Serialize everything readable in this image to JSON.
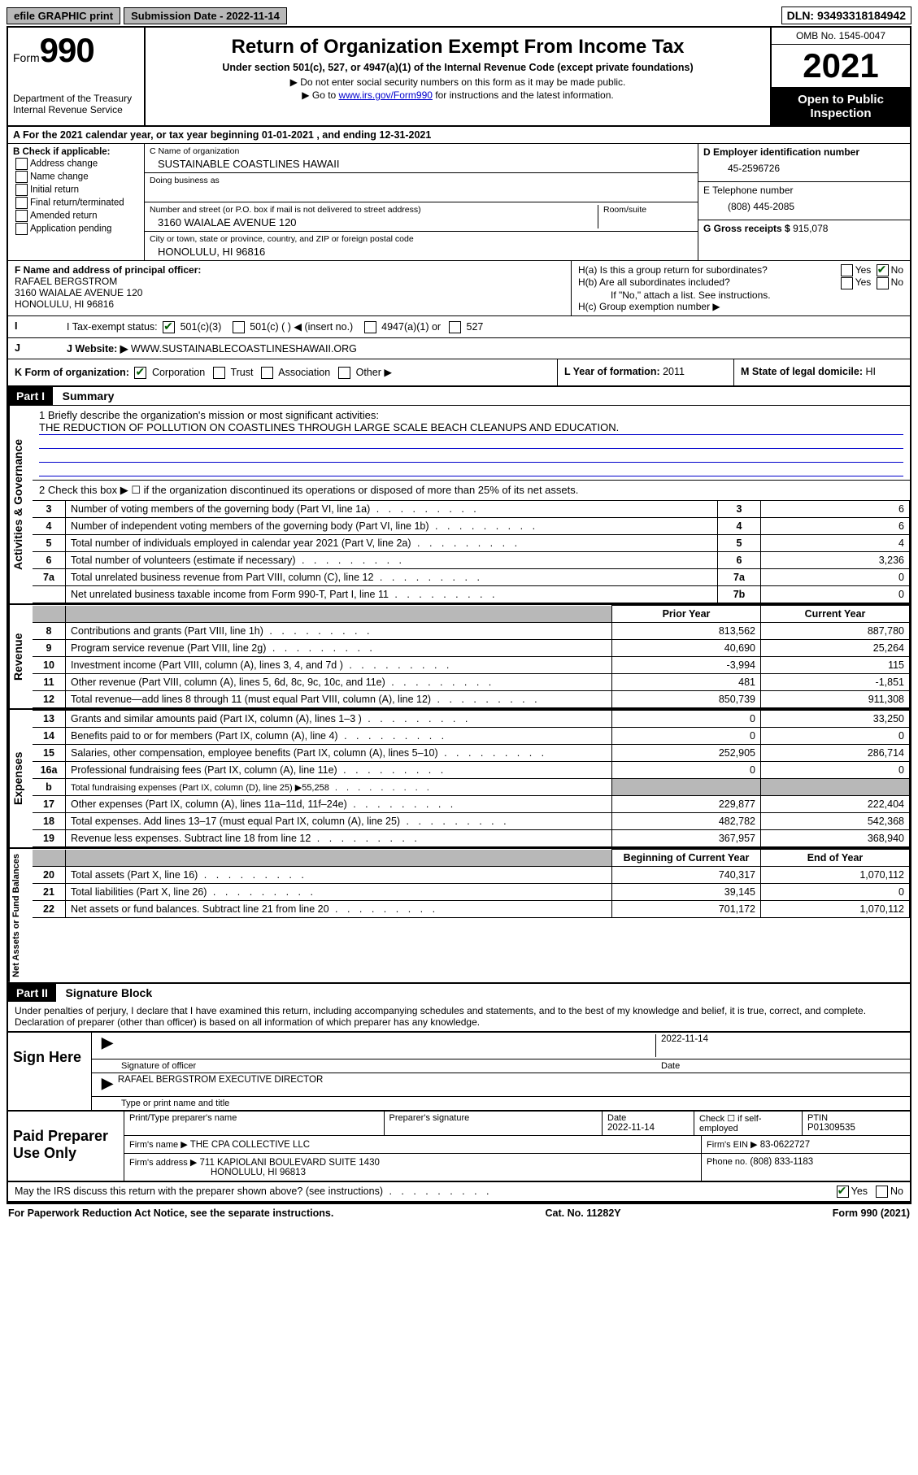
{
  "topbar": {
    "efile": "efile GRAPHIC print",
    "submission_label": "Submission Date - 2022-11-14",
    "dln": "DLN: 93493318184942"
  },
  "header": {
    "form_prefix": "Form",
    "form_number": "990",
    "dept": "Department of the Treasury",
    "irs": "Internal Revenue Service",
    "title": "Return of Organization Exempt From Income Tax",
    "sub": "Under section 501(c), 527, or 4947(a)(1) of the Internal Revenue Code (except private foundations)",
    "note1": "▶ Do not enter social security numbers on this form as it may be made public.",
    "note2_pre": "▶ Go to ",
    "note2_link": "www.irs.gov/Form990",
    "note2_post": " for instructions and the latest information.",
    "omb": "OMB No. 1545-0047",
    "year": "2021",
    "open_public1": "Open to Public",
    "open_public2": "Inspection"
  },
  "rowA": "A For the 2021 calendar year, or tax year beginning 01-01-2021  , and ending 12-31-2021",
  "colB": {
    "title": "B Check if applicable:",
    "items": [
      "Address change",
      "Name change",
      "Initial return",
      "Final return/terminated",
      "Amended return",
      "Application pending"
    ]
  },
  "colC": {
    "name_lbl": "C Name of organization",
    "name": "SUSTAINABLE COASTLINES HAWAII",
    "dba_lbl": "Doing business as",
    "addr_lbl": "Number and street (or P.O. box if mail is not delivered to street address)",
    "room_lbl": "Room/suite",
    "addr": "3160 WAIALAE AVENUE 120",
    "city_lbl": "City or town, state or province, country, and ZIP or foreign postal code",
    "city": "HONOLULU, HI  96816"
  },
  "colD": {
    "ein_lbl": "D Employer identification number",
    "ein": "45-2596726",
    "phone_lbl": "E Telephone number",
    "phone": "(808) 445-2085",
    "gross_lbl": "G Gross receipts $",
    "gross": "915,078"
  },
  "rowF": {
    "lbl": "F Name and address of principal officer:",
    "name": "RAFAEL BERGSTROM",
    "addr1": "3160 WAIALAE AVENUE 120",
    "addr2": "HONOLULU, HI  96816"
  },
  "rowH": {
    "ha": "H(a)  Is this a group return for subordinates?",
    "hb": "H(b)  Are all subordinates included?",
    "hb_note": "If \"No,\" attach a list. See instructions.",
    "hc": "H(c)  Group exemption number ▶",
    "yes": "Yes",
    "no": "No"
  },
  "rowI": {
    "lbl": "I  Tax-exempt status:",
    "o1": "501(c)(3)",
    "o2": "501(c) (  ) ◀ (insert no.)",
    "o3": "4947(a)(1) or",
    "o4": "527"
  },
  "rowJ": {
    "lbl": "J  Website: ▶",
    "val": "WWW.SUSTAINABLECOASTLINESHAWAII.ORG"
  },
  "rowK": {
    "lbl": "K Form of organization:",
    "o1": "Corporation",
    "o2": "Trust",
    "o3": "Association",
    "o4": "Other ▶",
    "L_lbl": "L Year of formation:",
    "L_val": "2011",
    "M_lbl": "M State of legal domicile:",
    "M_val": "HI"
  },
  "part1": {
    "header": "Part I",
    "title": "Summary",
    "side_gov": "Activities & Governance",
    "side_rev": "Revenue",
    "side_exp": "Expenses",
    "side_net": "Net Assets or Fund Balances",
    "line1_lbl": "1  Briefly describe the organization's mission or most significant activities:",
    "line1_val": "THE REDUCTION OF POLLUTION ON COASTLINES THROUGH LARGE SCALE BEACH CLEANUPS AND EDUCATION.",
    "line2": "2  Check this box ▶ ☐  if the organization discontinued its operations or disposed of more than 25% of its net assets.",
    "prior_year": "Prior Year",
    "current_year": "Current Year",
    "begin_year": "Beginning of Current Year",
    "end_year": "End of Year",
    "rows_gov": [
      {
        "n": "3",
        "t": "Number of voting members of the governing body (Part VI, line 1a)",
        "b": "3",
        "v": "6"
      },
      {
        "n": "4",
        "t": "Number of independent voting members of the governing body (Part VI, line 1b)",
        "b": "4",
        "v": "6"
      },
      {
        "n": "5",
        "t": "Total number of individuals employed in calendar year 2021 (Part V, line 2a)",
        "b": "5",
        "v": "4"
      },
      {
        "n": "6",
        "t": "Total number of volunteers (estimate if necessary)",
        "b": "6",
        "v": "3,236"
      },
      {
        "n": "7a",
        "t": "Total unrelated business revenue from Part VIII, column (C), line 12",
        "b": "7a",
        "v": "0"
      },
      {
        "n": "",
        "t": "Net unrelated business taxable income from Form 990-T, Part I, line 11",
        "b": "7b",
        "v": "0"
      }
    ],
    "rows_rev": [
      {
        "n": "8",
        "t": "Contributions and grants (Part VIII, line 1h)",
        "p": "813,562",
        "c": "887,780"
      },
      {
        "n": "9",
        "t": "Program service revenue (Part VIII, line 2g)",
        "p": "40,690",
        "c": "25,264"
      },
      {
        "n": "10",
        "t": "Investment income (Part VIII, column (A), lines 3, 4, and 7d )",
        "p": "-3,994",
        "c": "115"
      },
      {
        "n": "11",
        "t": "Other revenue (Part VIII, column (A), lines 5, 6d, 8c, 9c, 10c, and 11e)",
        "p": "481",
        "c": "-1,851"
      },
      {
        "n": "12",
        "t": "Total revenue—add lines 8 through 11 (must equal Part VIII, column (A), line 12)",
        "p": "850,739",
        "c": "911,308"
      }
    ],
    "rows_exp": [
      {
        "n": "13",
        "t": "Grants and similar amounts paid (Part IX, column (A), lines 1–3 )",
        "p": "0",
        "c": "33,250"
      },
      {
        "n": "14",
        "t": "Benefits paid to or for members (Part IX, column (A), line 4)",
        "p": "0",
        "c": "0"
      },
      {
        "n": "15",
        "t": "Salaries, other compensation, employee benefits (Part IX, column (A), lines 5–10)",
        "p": "252,905",
        "c": "286,714"
      },
      {
        "n": "16a",
        "t": "Professional fundraising fees (Part IX, column (A), line 11e)",
        "p": "0",
        "c": "0"
      },
      {
        "n": "b",
        "t": "Total fundraising expenses (Part IX, column (D), line 25) ▶55,258",
        "p": "",
        "c": "",
        "shade": true
      },
      {
        "n": "17",
        "t": "Other expenses (Part IX, column (A), lines 11a–11d, 11f–24e)",
        "p": "229,877",
        "c": "222,404"
      },
      {
        "n": "18",
        "t": "Total expenses. Add lines 13–17 (must equal Part IX, column (A), line 25)",
        "p": "482,782",
        "c": "542,368"
      },
      {
        "n": "19",
        "t": "Revenue less expenses. Subtract line 18 from line 12",
        "p": "367,957",
        "c": "368,940"
      }
    ],
    "rows_net": [
      {
        "n": "20",
        "t": "Total assets (Part X, line 16)",
        "p": "740,317",
        "c": "1,070,112"
      },
      {
        "n": "21",
        "t": "Total liabilities (Part X, line 26)",
        "p": "39,145",
        "c": "0"
      },
      {
        "n": "22",
        "t": "Net assets or fund balances. Subtract line 21 from line 20",
        "p": "701,172",
        "c": "1,070,112"
      }
    ]
  },
  "part2": {
    "header": "Part II",
    "title": "Signature Block",
    "decl": "Under penalties of perjury, I declare that I have examined this return, including accompanying schedules and statements, and to the best of my knowledge and belief, it is true, correct, and complete. Declaration of preparer (other than officer) is based on all information of which preparer has any knowledge.",
    "sign_here": "Sign Here",
    "sig_officer": "Signature of officer",
    "date": "Date",
    "sig_date": "2022-11-14",
    "officer_name": "RAFAEL BERGSTROM  EXECUTIVE DIRECTOR",
    "type_name": "Type or print name and title",
    "paid": "Paid Preparer Use Only",
    "prep_name_lbl": "Print/Type preparer's name",
    "prep_sig_lbl": "Preparer's signature",
    "prep_date_lbl": "Date",
    "prep_date": "2022-11-14",
    "check_lbl": "Check ☐ if self-employed",
    "ptin_lbl": "PTIN",
    "ptin": "P01309535",
    "firm_name_lbl": "Firm's name  ▶",
    "firm_name": "THE CPA COLLECTIVE LLC",
    "firm_ein_lbl": "Firm's EIN ▶",
    "firm_ein": "83-0622727",
    "firm_addr_lbl": "Firm's address ▶",
    "firm_addr1": "711 KAPIOLANI BOULEVARD SUITE 1430",
    "firm_addr2": "HONOLULU, HI  96813",
    "firm_phone_lbl": "Phone no.",
    "firm_phone": "(808) 833-1183",
    "discuss": "May the IRS discuss this return with the preparer shown above? (see instructions)"
  },
  "footer": {
    "left": "For Paperwork Reduction Act Notice, see the separate instructions.",
    "mid": "Cat. No. 11282Y",
    "right": "Form 990 (2021)"
  },
  "colors": {
    "link": "#0000cc",
    "shade": "#b8b8b8",
    "check": "#005a00"
  }
}
